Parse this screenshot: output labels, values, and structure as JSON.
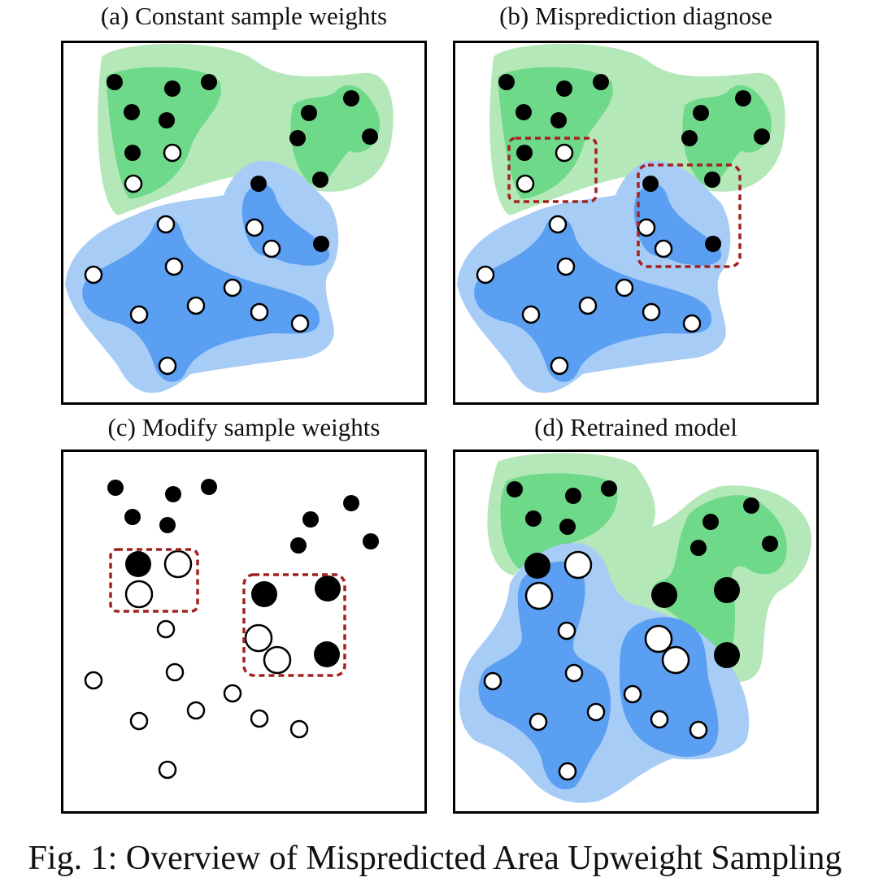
{
  "panels": [
    {
      "id": "a",
      "title": "(a) Constant sample weights"
    },
    {
      "id": "b",
      "title": "(b) Misprediction diagnose"
    },
    {
      "id": "c",
      "title": "(c) Modify sample weights"
    },
    {
      "id": "d",
      "title": "(d) Retrained model"
    }
  ],
  "caption": "Fig. 1: Overview of Mispredicted Area Upweight Sampling",
  "legend_colors": {
    "green_region_outer": "#b4e8b8",
    "green_region_inner": "#6fd98a",
    "blue_region_outer": "#a7cdf6",
    "blue_region_inner": "#5b9ff2",
    "black_point": "#000000",
    "white_point": "#ffffff",
    "dashed_box": "#a3221f",
    "frame": "#000000"
  }
}
